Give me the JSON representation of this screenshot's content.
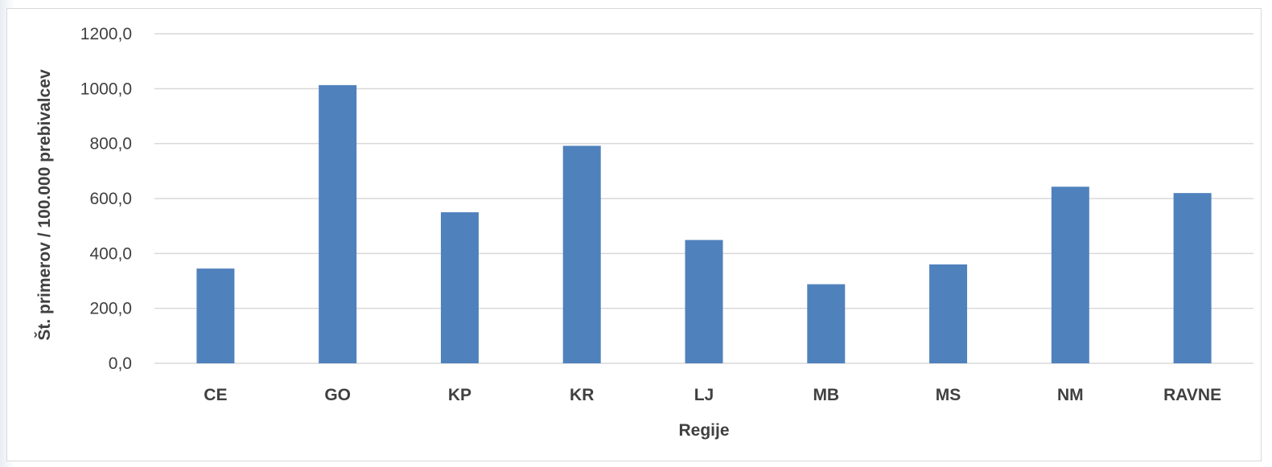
{
  "chart_data": {
    "type": "bar",
    "categories": [
      "CE",
      "GO",
      "KP",
      "KR",
      "LJ",
      "MB",
      "MS",
      "NM",
      "RAVNE"
    ],
    "series": [
      {
        "values": [
          345,
          1013,
          550,
          792,
          449,
          288,
          360,
          643,
          620
        ],
        "color": "#4f81bd"
      }
    ],
    "title": "",
    "xlabel": "Regije",
    "ylabel": "Št. primerov / 100.000 prebivalcev",
    "ylim": [
      0,
      1200
    ],
    "yticks": [
      0,
      200,
      400,
      600,
      800,
      1000,
      1200
    ],
    "ytick_labels": [
      "0,0",
      "200,0",
      "400,0",
      "600,0",
      "800,0",
      "1000,0",
      "1200,0"
    ],
    "grid": true,
    "legend": "none"
  }
}
